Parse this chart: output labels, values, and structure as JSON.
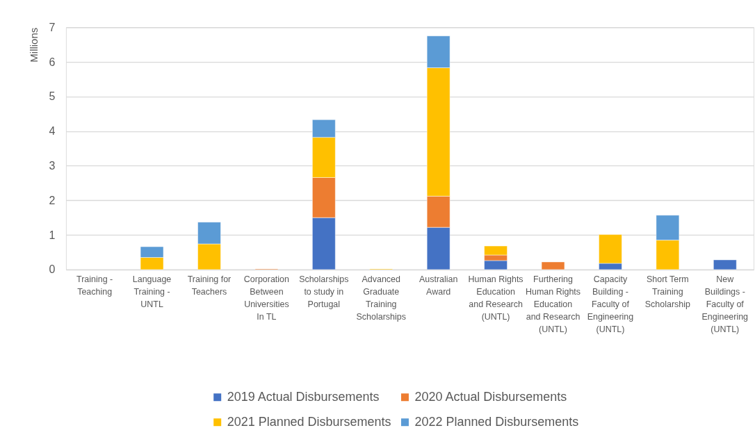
{
  "chart_data": {
    "type": "bar",
    "stacked": true,
    "ylabel": "Millions",
    "categories": [
      "Training - Teaching",
      "Language Training - UNTL",
      "Training for Teachers",
      "Corporation Between Universities In TL",
      "Scholarships to study in Portugal",
      "Advanced Graduate Training Scholarships",
      "Australian Award",
      "Human Rights Education and Research (UNTL)",
      "Furthering Human Rights Education and Research (UNTL)",
      "Capacity Building - Faculty of Engineering (UNTL)",
      "Short Term Training Scholarship",
      "New Buildings - Faculty of Engineering (UNTL)"
    ],
    "series": [
      {
        "name": "2019 Actual Disbursements",
        "color": "#4472c4",
        "values": [
          null,
          null,
          null,
          null,
          1.5,
          null,
          1.22,
          0.26,
          null,
          0.18,
          null,
          0.28
        ]
      },
      {
        "name": "2020 Actual Disbursements",
        "color": "#ed7d31",
        "values": [
          null,
          null,
          null,
          0.02,
          1.16,
          null,
          0.9,
          0.16,
          0.22,
          null,
          null,
          null
        ]
      },
      {
        "name": "2021 Planned Disbursements",
        "color": "#ffc000",
        "values": [
          null,
          0.35,
          0.74,
          null,
          1.16,
          0.02,
          3.71,
          0.26,
          null,
          0.83,
          0.85,
          null
        ]
      },
      {
        "name": "2022 Planned Disbursements",
        "color": "#5b9bd5",
        "values": [
          null,
          0.31,
          0.63,
          null,
          0.51,
          null,
          0.92,
          null,
          null,
          null,
          0.72,
          null
        ]
      }
    ],
    "ylim": [
      0,
      7
    ],
    "yticks": [
      0,
      1,
      2,
      3,
      4,
      5,
      6,
      7
    ],
    "grid": "y",
    "legend": "bottom"
  }
}
